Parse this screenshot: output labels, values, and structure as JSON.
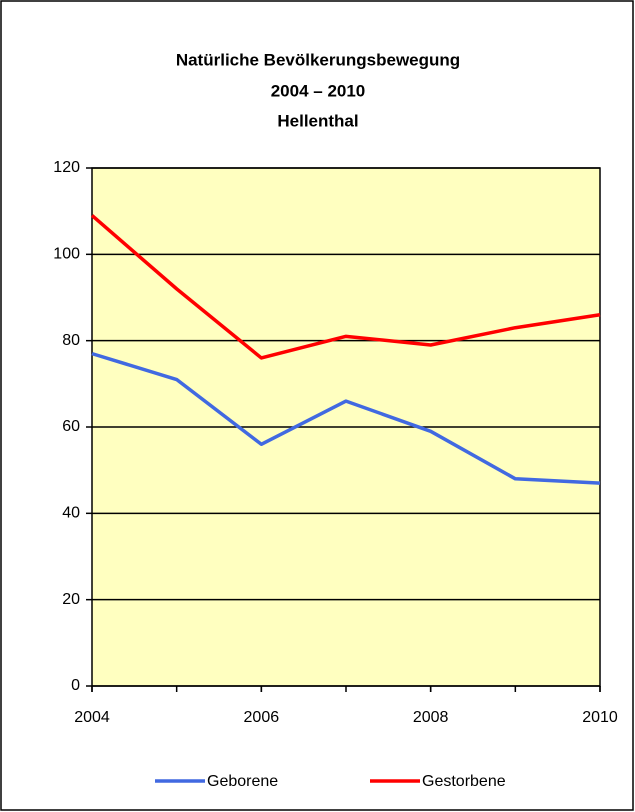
{
  "chart_data": {
    "type": "line",
    "title": [
      "Natürliche Bevölkerungsbewegung",
      "2004 – 2010",
      "Hellenthal"
    ],
    "x": [
      2004,
      2005,
      2006,
      2007,
      2008,
      2009,
      2010
    ],
    "series": [
      {
        "name": "Geborene",
        "color": "#4169e1",
        "values": [
          77,
          71,
          56,
          66,
          59,
          48,
          47
        ]
      },
      {
        "name": "Gestorbene",
        "color": "#ff0000",
        "values": [
          109,
          92,
          76,
          81,
          79,
          83,
          86
        ]
      }
    ],
    "xlim": [
      2004,
      2010
    ],
    "xticks": [
      2004,
      2006,
      2008,
      2010
    ],
    "ylim": [
      0,
      120
    ],
    "yticks": [
      0,
      20,
      40,
      60,
      80,
      100,
      120
    ],
    "grid": true,
    "background": "#ffffc0"
  }
}
